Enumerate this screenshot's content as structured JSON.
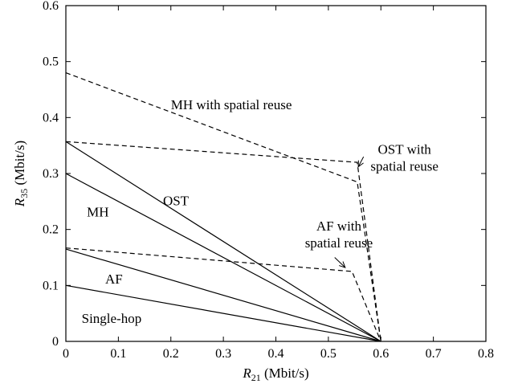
{
  "chart_data": {
    "type": "line",
    "title": "",
    "xlabel": {
      "symbol": "R",
      "sub": "21",
      "unit": " (Mbit/s)"
    },
    "ylabel": {
      "symbol": "R",
      "sub": "35",
      "unit": " (Mbit/s)"
    },
    "xlim": [
      0,
      0.8
    ],
    "ylim": [
      0,
      0.6
    ],
    "xticks": [
      0,
      0.1,
      0.2,
      0.3,
      0.4,
      0.5,
      0.6,
      0.7,
      0.8
    ],
    "yticks": [
      0,
      0.1,
      0.2,
      0.3,
      0.4,
      0.5,
      0.6
    ],
    "xtick_labels": [
      "0",
      "0.1",
      "0.2",
      "0.3",
      "0.4",
      "0.5",
      "0.6",
      "0.7",
      "0.8"
    ],
    "ytick_labels": [
      "0",
      "0.1",
      "0.2",
      "0.3",
      "0.4",
      "0.5",
      "0.6"
    ],
    "grid": false,
    "series": [
      {
        "name": "Single-hop",
        "style": "solid",
        "x": [
          0,
          0.6
        ],
        "y": [
          0.1,
          0
        ]
      },
      {
        "name": "AF",
        "style": "solid",
        "x": [
          0,
          0.6
        ],
        "y": [
          0.165,
          0
        ]
      },
      {
        "name": "MH",
        "style": "solid",
        "x": [
          0,
          0.6
        ],
        "y": [
          0.3,
          0
        ]
      },
      {
        "name": "OST",
        "style": "solid",
        "x": [
          0,
          0.6
        ],
        "y": [
          0.357,
          0
        ]
      },
      {
        "name": "MH with spatial reuse",
        "style": "dashed",
        "x": [
          0,
          0.555,
          0.6
        ],
        "y": [
          0.48,
          0.285,
          0
        ]
      },
      {
        "name": "OST with spatial reuse",
        "style": "dashed",
        "x": [
          0,
          0.555,
          0.6
        ],
        "y": [
          0.357,
          0.32,
          0
        ]
      },
      {
        "name": "AF with spatial reuse",
        "style": "dashed",
        "x": [
          0,
          0.545,
          0.6
        ],
        "y": [
          0.167,
          0.125,
          0
        ]
      }
    ],
    "annotations": [
      {
        "lines": [
          "MH with spatial reuse"
        ],
        "x": 0.2,
        "y": 0.415,
        "anchor": "start"
      },
      {
        "lines": [
          "OST with spatial reuse"
        ],
        "x": 0.645,
        "y": 0.335,
        "anchor": "middle",
        "raw": "OST with spatial reuse"
      },
      {
        "lines": [
          "AF with spatial reuse"
        ],
        "x": 0.52,
        "y": 0.198,
        "anchor": "middle",
        "raw": "AF with spatial reuse"
      },
      {
        "lines": [
          "OST"
        ],
        "x": 0.185,
        "y": 0.243,
        "anchor": "start"
      },
      {
        "lines": [
          "MH"
        ],
        "x": 0.04,
        "y": 0.223,
        "anchor": "start"
      },
      {
        "lines": [
          "AF"
        ],
        "x": 0.075,
        "y": 0.103,
        "anchor": "start"
      },
      {
        "lines": [
          "Single-hop"
        ],
        "x": 0.03,
        "y": 0.033,
        "anchor": "start"
      }
    ],
    "arrows": [
      {
        "from": [
          0.567,
          0.33
        ],
        "to": [
          0.557,
          0.312
        ]
      },
      {
        "from": [
          0.512,
          0.15
        ],
        "to": [
          0.532,
          0.132
        ]
      }
    ]
  }
}
